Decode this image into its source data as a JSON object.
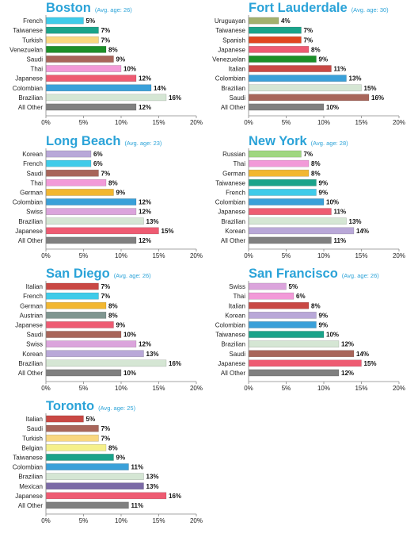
{
  "chart_data": [
    {
      "type": "bar",
      "title": "Boston",
      "subtitle": "(Avg. age: 26)",
      "categories": [
        "French",
        "Taiwanese",
        "Turkish",
        "Venezuelan",
        "Saudi",
        "Thai",
        "Japanese",
        "Colombian",
        "Brazilian",
        "All Other"
      ],
      "values": [
        5,
        7,
        7,
        8,
        9,
        10,
        12,
        14,
        16,
        12
      ],
      "colors": [
        "#3fcbe9",
        "#1aa38a",
        "#f9d77f",
        "#1c8f28",
        "#a8655a",
        "#f29ad8",
        "#ee5b72",
        "#3aa0d9",
        "#d5e6d4",
        "#808080"
      ],
      "ticks": [
        "0%",
        "5%",
        "10%",
        "15%",
        "20%"
      ],
      "xlim": [
        0,
        20
      ],
      "grid": false
    },
    {
      "type": "bar",
      "title": "Fort Lauderdale",
      "subtitle": "(Avg. age: 30)",
      "categories": [
        "Uruguayan",
        "Taiwanese",
        "Spanish",
        "Japanese",
        "Venezuelan",
        "Italian",
        "Colombian",
        "Brazilian",
        "Saudi",
        "All Other"
      ],
      "values": [
        4,
        7,
        7,
        8,
        9,
        11,
        13,
        15,
        16,
        10
      ],
      "colors": [
        "#a3b06e",
        "#1aa38a",
        "#e1451f",
        "#ee5b72",
        "#1c8f28",
        "#c94844",
        "#3aa0d9",
        "#d5e6d4",
        "#a8655a",
        "#808080"
      ],
      "ticks": [
        "0%",
        "5%",
        "10%",
        "15%",
        "20%"
      ],
      "xlim": [
        0,
        20
      ],
      "grid": false
    },
    {
      "type": "bar",
      "title": "Long Beach",
      "subtitle": "(Avg. age: 23)",
      "categories": [
        "Korean",
        "French",
        "Saudi",
        "Thai",
        "German",
        "Colombian",
        "Swiss",
        "Brazilian",
        "Japanese",
        "All Other"
      ],
      "values": [
        6,
        6,
        7,
        8,
        9,
        12,
        12,
        13,
        15,
        12
      ],
      "colors": [
        "#b9a8d8",
        "#3fcbe9",
        "#a8655a",
        "#f29ad8",
        "#f2b731",
        "#3aa0d9",
        "#dba4dc",
        "#d5e6d4",
        "#ee5b72",
        "#808080"
      ],
      "ticks": [
        "0%",
        "5%",
        "10%",
        "15%",
        "20%"
      ],
      "xlim": [
        0,
        20
      ],
      "grid": false
    },
    {
      "type": "bar",
      "title": "New York",
      "subtitle": "(Avg. age: 28)",
      "categories": [
        "Russian",
        "Thai",
        "German",
        "Taiwanese",
        "French",
        "Colombian",
        "Japanese",
        "Brazilian",
        "Korean",
        "All Other"
      ],
      "values": [
        7,
        8,
        8,
        9,
        9,
        10,
        11,
        13,
        14,
        11
      ],
      "colors": [
        "#9fd780",
        "#f29ad8",
        "#f2b731",
        "#1aa38a",
        "#3fcbe9",
        "#3aa0d9",
        "#ee5b72",
        "#d5e6d4",
        "#b9a8d8",
        "#808080"
      ],
      "ticks": [
        "0%",
        "5%",
        "10%",
        "15%",
        "20%"
      ],
      "xlim": [
        0,
        20
      ],
      "grid": false
    },
    {
      "type": "bar",
      "title": "San Diego",
      "subtitle": "(Avg. age: 26)",
      "categories": [
        "Italian",
        "French",
        "German",
        "Austrian",
        "Japanese",
        "Saudi",
        "Swiss",
        "Korean",
        "Brazilian",
        "All Other"
      ],
      "values": [
        7,
        7,
        8,
        8,
        9,
        10,
        12,
        13,
        16,
        10
      ],
      "colors": [
        "#c94844",
        "#3fcbe9",
        "#f2b731",
        "#7f9690",
        "#ee5b72",
        "#a8655a",
        "#dba4dc",
        "#b9a8d8",
        "#d5e6d4",
        "#808080"
      ],
      "ticks": [
        "0%",
        "5%",
        "10%",
        "15%",
        "20%"
      ],
      "xlim": [
        0,
        20
      ],
      "grid": false
    },
    {
      "type": "bar",
      "title": "San Francisco",
      "subtitle": "(Avg. age: 26)",
      "categories": [
        "Swiss",
        "Thai",
        "Italian",
        "Korean",
        "Colombian",
        "Taiwanese",
        "Brazilian",
        "Saudi",
        "Japanese",
        "All Other"
      ],
      "values": [
        5,
        6,
        8,
        9,
        9,
        10,
        12,
        14,
        15,
        12
      ],
      "colors": [
        "#dba4dc",
        "#f29ad8",
        "#c94844",
        "#b9a8d8",
        "#3aa0d9",
        "#1aa38a",
        "#d5e6d4",
        "#a8655a",
        "#ee5b72",
        "#808080"
      ],
      "ticks": [
        "0%",
        "5%",
        "10%",
        "15%",
        "20%"
      ],
      "xlim": [
        0,
        20
      ],
      "grid": false
    },
    {
      "type": "bar",
      "title": "Toronto",
      "subtitle": "(Avg. age: 25)",
      "categories": [
        "Italian",
        "Saudi",
        "Turkish",
        "Belgian",
        "Taiwanese",
        "Colombian",
        "Brazilian",
        "Mexican",
        "Japanese",
        "All Other"
      ],
      "values": [
        5,
        7,
        7,
        8,
        9,
        11,
        13,
        13,
        16,
        11
      ],
      "colors": [
        "#c94844",
        "#a8655a",
        "#f9d77f",
        "#f5f08a",
        "#1aa38a",
        "#3aa0d9",
        "#d5e6d4",
        "#7b6aa6",
        "#ee5b72",
        "#808080"
      ],
      "ticks": [
        "0%",
        "5%",
        "10%",
        "15%",
        "20%"
      ],
      "xlim": [
        0,
        20
      ],
      "grid": false
    }
  ]
}
